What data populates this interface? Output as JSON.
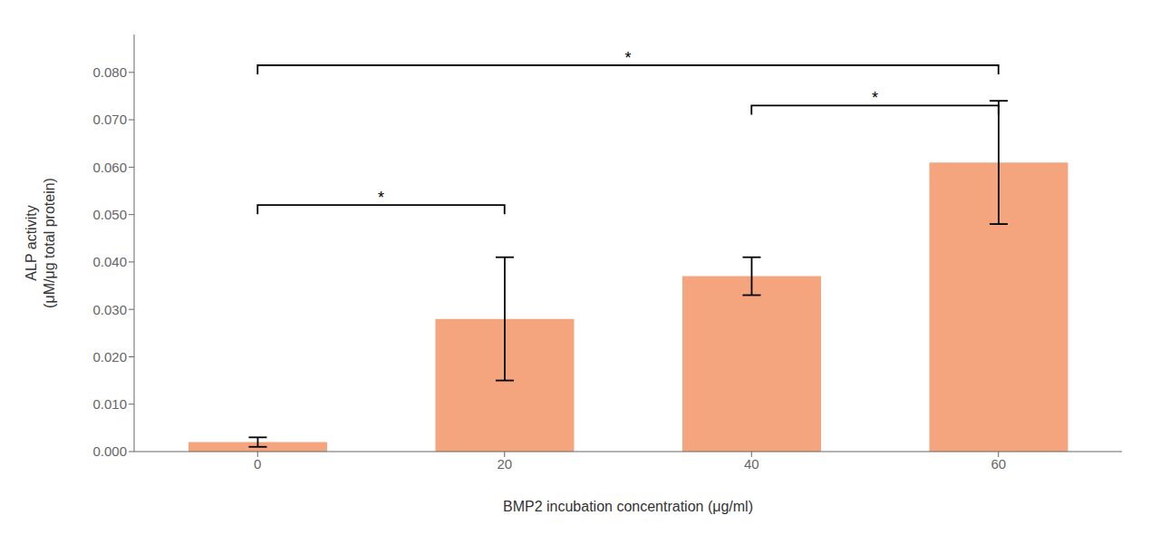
{
  "chart_data": {
    "type": "bar",
    "categories": [
      "0",
      "20",
      "40",
      "60"
    ],
    "values": [
      0.002,
      0.028,
      0.037,
      0.061
    ],
    "errors": [
      0.001,
      0.013,
      0.004,
      0.013
    ],
    "color": "#F4A57E",
    "xlabel": "BMP2 incubation concentration (μg/ml)",
    "ylabel": "ALP activity\n(μM/μg total protein)",
    "ylim": [
      0,
      0.088
    ],
    "yticks": [
      {
        "value": 0.0,
        "label": "0.000"
      },
      {
        "value": 0.01,
        "label": "0.010"
      },
      {
        "value": 0.02,
        "label": "0.020"
      },
      {
        "value": 0.03,
        "label": "0.030"
      },
      {
        "value": 0.04,
        "label": "0.040"
      },
      {
        "value": 0.05,
        "label": "0.050"
      },
      {
        "value": 0.06,
        "label": "0.060"
      },
      {
        "value": 0.07,
        "label": "0.070"
      },
      {
        "value": 0.08,
        "label": "0.080"
      }
    ],
    "grid": false,
    "annotations": [
      {
        "from": "0",
        "to": "20",
        "y": 0.052,
        "text": "*"
      },
      {
        "from": "0",
        "to": "60",
        "y": 0.0815,
        "text": "*"
      },
      {
        "from": "40",
        "to": "60",
        "y": 0.073,
        "text": "*"
      }
    ]
  }
}
